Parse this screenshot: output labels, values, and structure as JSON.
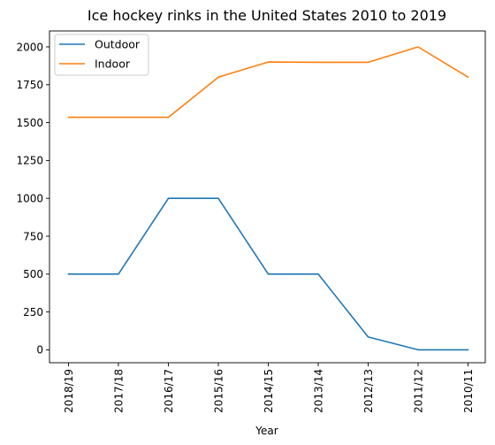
{
  "chart_data": {
    "type": "line",
    "title": "Ice hockey rinks in the United States 2010 to 2019",
    "xlabel": "Year",
    "ylabel": "",
    "categories": [
      "2018/19",
      "2017/18",
      "2016/17",
      "2015/16",
      "2014/15",
      "2013/14",
      "2012/13",
      "2011/12",
      "2010/11"
    ],
    "ylim": [
      -85,
      2105
    ],
    "yticks": [
      0,
      250,
      500,
      750,
      1000,
      1250,
      1500,
      1750,
      2000
    ],
    "grid": false,
    "legend_position": "top-left",
    "series": [
      {
        "name": "Outdoor",
        "color": "#1f77b4",
        "values": [
          500,
          500,
          1000,
          1000,
          500,
          500,
          85,
          0,
          0
        ]
      },
      {
        "name": "Indoor",
        "color": "#ff7f0e",
        "values": [
          1535,
          1535,
          1535,
          1800,
          1900,
          1898,
          1898,
          2000,
          1800
        ]
      }
    ]
  }
}
